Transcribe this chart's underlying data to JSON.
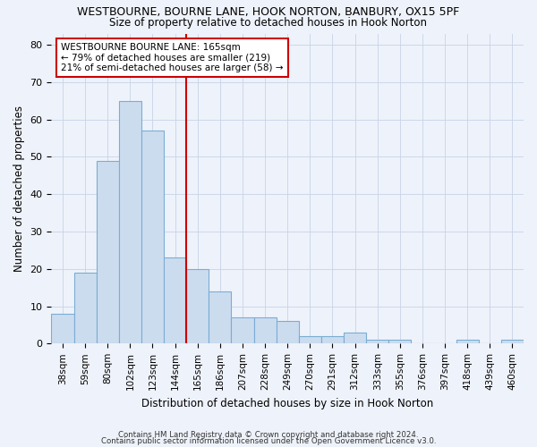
{
  "title": "WESTBOURNE, BOURNE LANE, HOOK NORTON, BANBURY, OX15 5PF",
  "subtitle": "Size of property relative to detached houses in Hook Norton",
  "xlabel": "Distribution of detached houses by size in Hook Norton",
  "ylabel": "Number of detached properties",
  "categories": [
    "38sqm",
    "59sqm",
    "80sqm",
    "102sqm",
    "123sqm",
    "144sqm",
    "165sqm",
    "186sqm",
    "207sqm",
    "228sqm",
    "249sqm",
    "270sqm",
    "291sqm",
    "312sqm",
    "333sqm",
    "355sqm",
    "376sqm",
    "397sqm",
    "418sqm",
    "439sqm",
    "460sqm"
  ],
  "values": [
    8,
    19,
    49,
    65,
    57,
    23,
    20,
    14,
    7,
    7,
    6,
    2,
    2,
    3,
    1,
    1,
    0,
    0,
    1,
    0,
    1
  ],
  "bar_color": "#ccdcef",
  "bar_edge_color": "#7aadd4",
  "highlight_index": 6,
  "highlight_line_color": "#cc0000",
  "annotation_line1": "WESTBOURNE BOURNE LANE: 165sqm",
  "annotation_line2": "← 79% of detached houses are smaller (219)",
  "annotation_line3": "21% of semi-detached houses are larger (58) →",
  "annotation_box_color": "#ffffff",
  "annotation_box_edge_color": "#cc0000",
  "ylim": [
    0,
    83
  ],
  "yticks": [
    0,
    10,
    20,
    30,
    40,
    50,
    60,
    70,
    80
  ],
  "grid_color": "#c8d4e8",
  "background_color": "#eef2fa",
  "footer1": "Contains HM Land Registry data © Crown copyright and database right 2024.",
  "footer2": "Contains public sector information licensed under the Open Government Licence v3.0."
}
